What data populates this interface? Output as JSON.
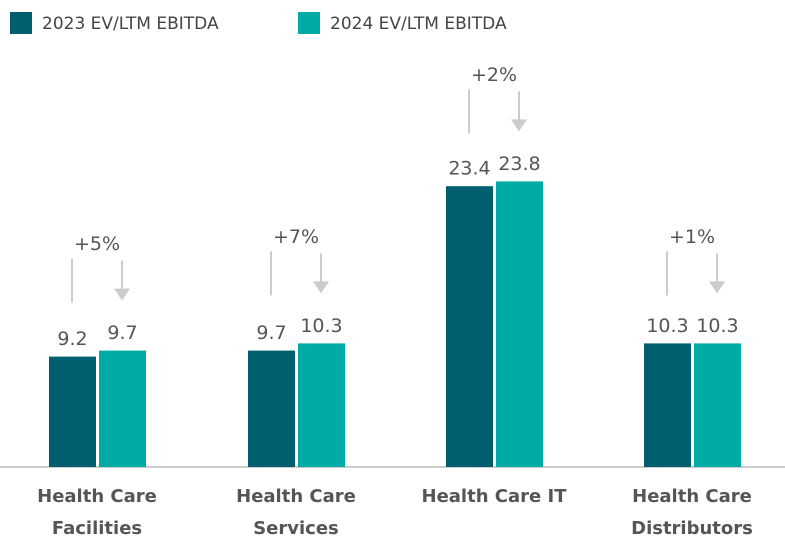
{
  "chart_data": {
    "type": "bar",
    "categories": [
      [
        "Health Care",
        "Facilities"
      ],
      [
        "Health Care",
        "Services"
      ],
      [
        "Health Care IT"
      ],
      [
        "Health Care",
        "Distributors"
      ]
    ],
    "series": [
      {
        "name": "2023 EV/LTM EBITDA",
        "color": "#005f6e",
        "values": [
          9.2,
          9.7,
          23.4,
          10.3
        ]
      },
      {
        "name": "2024 EV/LTM EBITDA",
        "color": "#00aaa5",
        "values": [
          9.7,
          10.3,
          23.8,
          10.3
        ]
      }
    ],
    "annotations": [
      "+5%",
      "+7%",
      "+2%",
      "+1%"
    ]
  }
}
